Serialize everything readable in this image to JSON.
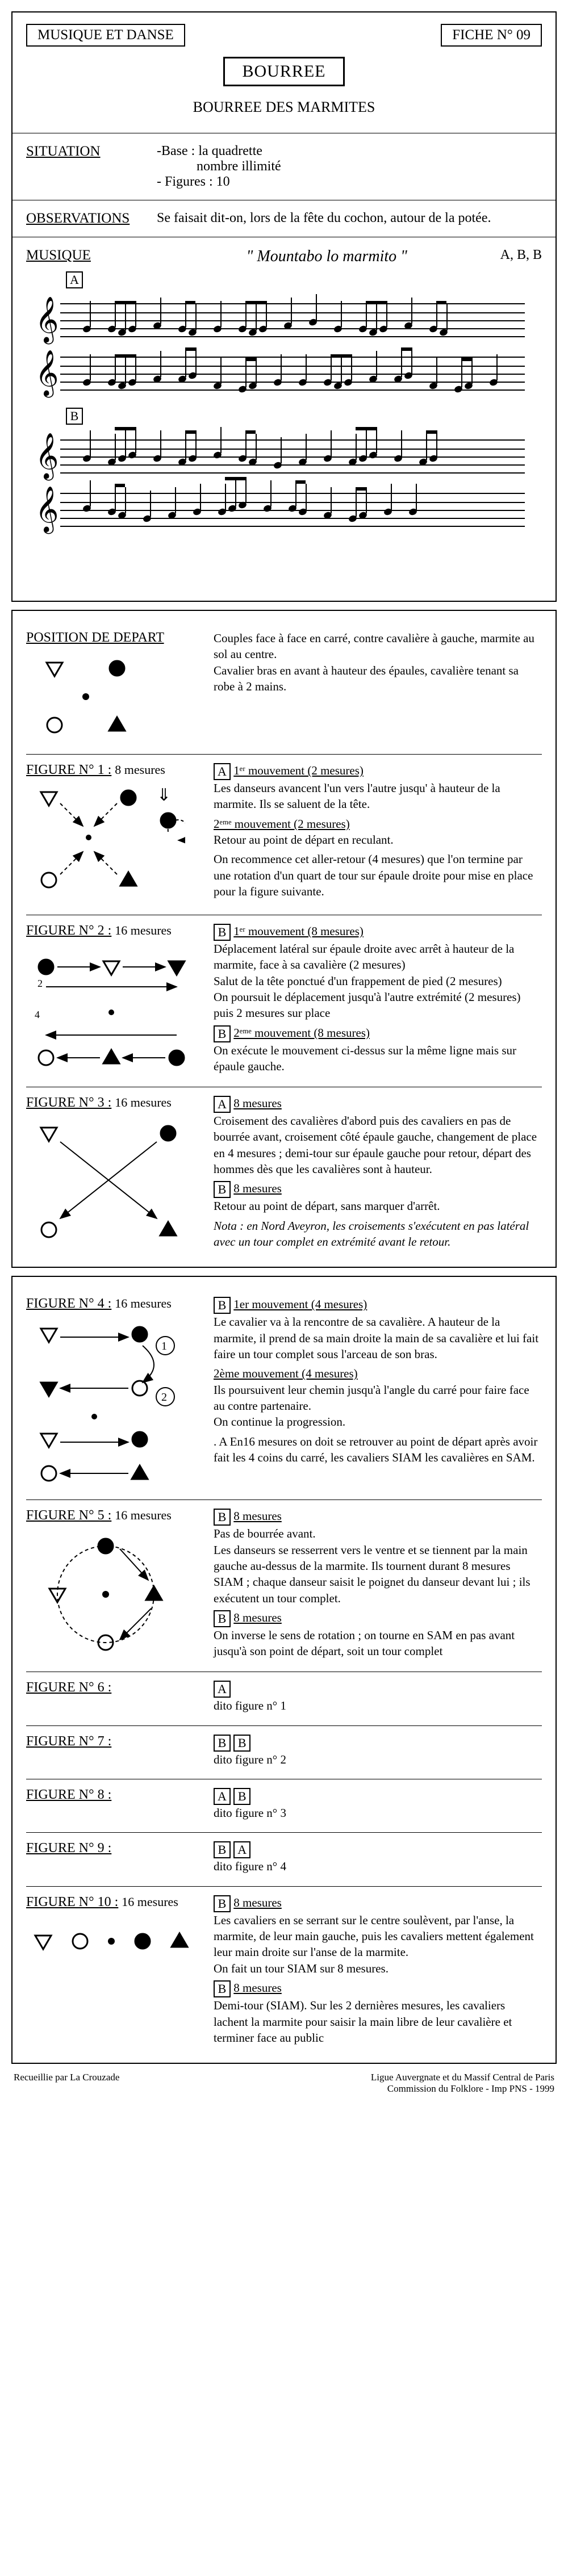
{
  "header": {
    "leftBox": "MUSIQUE ET DANSE",
    "rightBox": "FICHE N° 09",
    "centerBox": "BOURREE",
    "subtitle": "BOURREE DES MARMITES"
  },
  "situation": {
    "label": "SITUATION",
    "lines": [
      "-Base : la quadrette",
      "nombre illimité",
      "- Figures : 10"
    ]
  },
  "observations": {
    "label": "OBSERVATIONS",
    "text": "Se faisait dit-on, lors de la fête du cochon, autour de la potée."
  },
  "musique": {
    "label": "MUSIQUE",
    "title": "\"   Mountabo lo marmito    \"",
    "keys": "A, B, B",
    "markers": [
      "A",
      "B"
    ]
  },
  "position": {
    "label": "POSITION DE DEPART",
    "text": "Couples face à face en carré, contre cavalière à gauche, marmite au sol au centre.\nCavalier bras en avant à hauteur des épaules, cavalière tenant sa robe à 2 mains."
  },
  "figures": [
    {
      "label": "FIGURE N° 1 :",
      "dur": "8 mesures",
      "blocks": [
        {
          "box": "A",
          "title": "1ᵉʳ mouvement (2 mesures)",
          "text": "Les danseurs avancent l'un vers l'autre jusqu' à hauteur de la marmite. Ils se saluent de la tête."
        },
        {
          "title": "2ᵉᵐᵉ mouvement (2 mesures)",
          "text": "Retour au point de départ en reculant."
        },
        {
          "text": "On recommence cet aller-retour (4 mesures) que l'on termine par une rotation d'un quart de tour sur épaule droite pour mise en place pour la figure suivante."
        }
      ]
    },
    {
      "label": "FIGURE N° 2 :",
      "dur": "16 mesures",
      "blocks": [
        {
          "box": "B",
          "title": "1ᵉʳ mouvement (8 mesures)",
          "text": "Déplacement latéral sur épaule droite avec arrêt à hauteur de la marmite, face à sa cavalière (2 mesures)\nSalut de la tête ponctué d'un frappement de pied (2 mesures)\nOn poursuit le déplacement jusqu'à l'autre extrémité (2 mesures) puis 2 mesures sur place"
        },
        {
          "box": "B",
          "title": "2ᵉᵐᵉ mouvement (8 mesures)",
          "text": "On exécute le mouvement ci-dessus sur la même ligne mais sur épaule gauche."
        }
      ]
    },
    {
      "label": "FIGURE N° 3 :",
      "dur": "16 mesures",
      "blocks": [
        {
          "box": "A",
          "title": "8 mesures",
          "text": "Croisement des cavalières d'abord puis des cavaliers en pas de bourrée avant, croisement côté épaule gauche, changement de place en 4 mesures ; demi-tour sur épaule gauche pour retour, départ des hommes dès que les cavalières sont à hauteur."
        },
        {
          "box": "B",
          "title": "8 mesures",
          "text": "Retour au point de départ, sans marquer d'arrêt."
        },
        {
          "note": "Nota : en Nord Aveyron, les croisements s'exécutent en pas latéral avec un tour complet en extrémité avant le retour."
        }
      ]
    },
    {
      "label": "FIGURE N° 4 :",
      "dur": "16 mesures",
      "blocks": [
        {
          "box": "B",
          "title": "1er mouvement (4 mesures)",
          "text": "Le cavalier va à la rencontre de sa cavalière. A hauteur de la marmite, il prend de sa main droite la main de sa cavalière et lui fait faire un tour complet sous l'arceau de son bras."
        },
        {
          "title": "2ème mouvement (4 mesures)",
          "text": "Ils poursuivent leur chemin jusqu'à l'angle du carré pour faire face au contre partenaire.\nOn continue la progression."
        },
        {
          "text": ". A En16 mesures on doit se retrouver au point de départ après avoir fait les 4 coins du carré, les cavaliers SIAM les cavalières en SAM."
        }
      ]
    },
    {
      "label": "FIGURE N° 5 :",
      "dur": "16 mesures",
      "blocks": [
        {
          "box": "B",
          "title": "8 mesures",
          "text": "Pas de bourrée avant.\nLes danseurs se resserrent vers le ventre et se tiennent par la main gauche au-dessus de la marmite. Ils tournent durant 8 mesures SIAM ; chaque danseur saisit le poignet du danseur devant lui ; ils exécutent un tour complet."
        },
        {
          "box": "B",
          "title": "8 mesures",
          "text": "On inverse le sens de rotation ; on tourne en SAM en pas avant jusqu'à son point de départ, soit un tour complet"
        }
      ]
    },
    {
      "label": "FIGURE N° 6 :",
      "dur": "",
      "blocks": [
        {
          "box": "A",
          "text": "dito figure n° 1"
        }
      ]
    },
    {
      "label": "FIGURE N° 7 :",
      "dur": "",
      "blocks": [
        {
          "box": "B",
          "box2": "B",
          "text": "dito figure n° 2"
        }
      ]
    },
    {
      "label": "FIGURE N° 8 :",
      "dur": "",
      "blocks": [
        {
          "box": "A",
          "box2": "B",
          "text": "dito figure n° 3"
        }
      ]
    },
    {
      "label": "FIGURE N° 9 :",
      "dur": "",
      "blocks": [
        {
          "box": "B",
          "box2": "A",
          "text": "dito figure n° 4"
        }
      ]
    },
    {
      "label": "FIGURE N° 10 :",
      "dur": "16 mesures",
      "blocks": [
        {
          "box": "B",
          "title": "8 mesures",
          "text": "Les cavaliers en se serrant sur le centre soulèvent, par l'anse, la marmite,  de leur main gauche, puis les cavaliers mettent également leur main droite sur l'anse de la marmite.\nOn fait un tour SIAM sur 8 mesures."
        },
        {
          "box": "B",
          "title": "8 mesures",
          "text": "Demi-tour (SIAM). Sur les 2 dernières mesures, les cavaliers lachent la marmite pour saisir la main libre de leur cavalière et terminer face au public"
        }
      ]
    }
  ],
  "footer": {
    "left": "Recueillie  par La Crouzade",
    "right": "Ligue Auvergnate et du Massif Central de Paris\nCommission  du Folklore - Imp PNS - 1999"
  }
}
